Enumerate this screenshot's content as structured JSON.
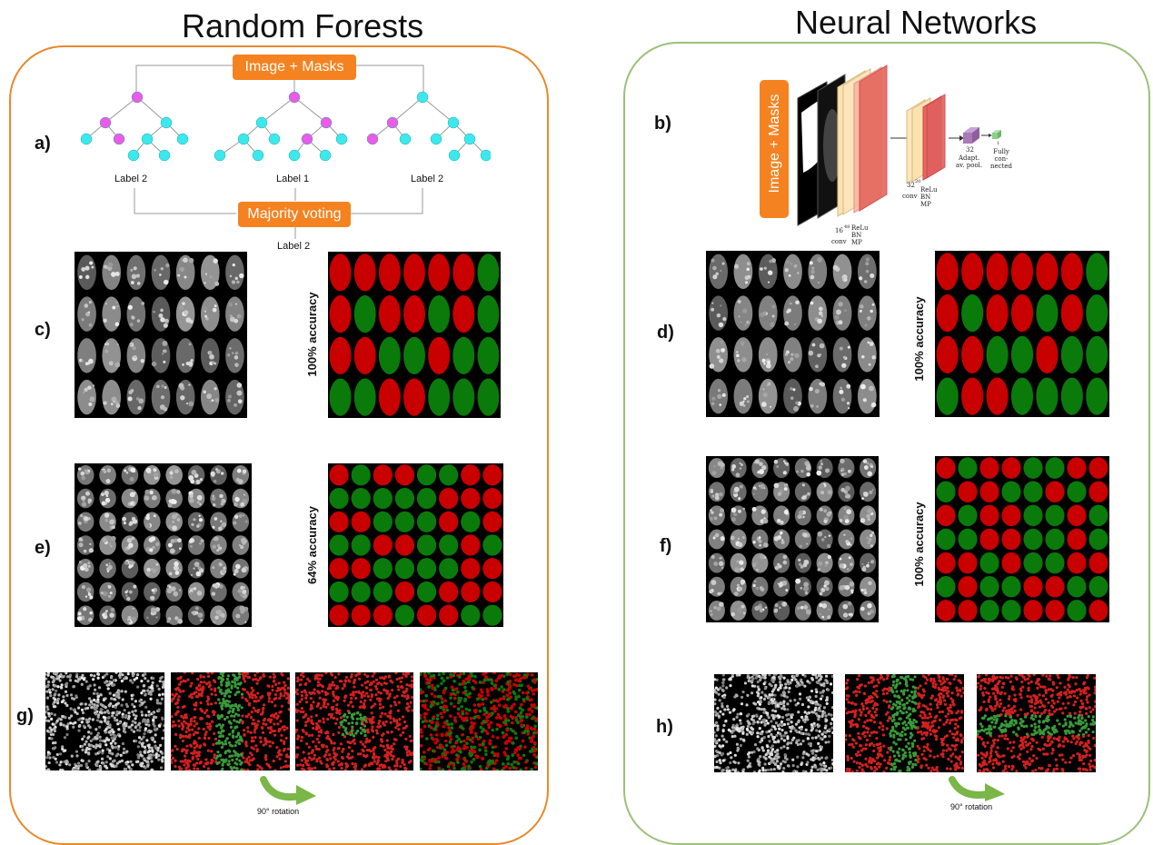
{
  "titles": {
    "rf": "Random Forests",
    "nn": "Neural Networks"
  },
  "labels": {
    "a": "a)",
    "b": "b)",
    "c": "c)",
    "d": "d)",
    "e": "e)",
    "f": "f)",
    "g": "g)",
    "h": "h)"
  },
  "rf_diagram": {
    "input_label": "Image + Masks",
    "vote_label": "Majority voting",
    "tree_outputs": [
      "Label 2",
      "Label 1",
      "Label 2"
    ],
    "final_output": "Label 2"
  },
  "nn_diagram": {
    "input_label": "Image + Masks",
    "layer1_size": "16",
    "layer1_dim": "48",
    "layer1_op": "conv",
    "layer1_post": [
      "ReLu",
      "BN",
      "MP"
    ],
    "layer2_size": "32",
    "layer2_dim": "20",
    "layer2_op": "conv",
    "layer2_post": [
      "ReLu",
      "BN",
      "MP"
    ],
    "pool_size": "32",
    "pool_label": [
      "Adapt.",
      "av. pool."
    ],
    "fc_size": "1",
    "fc_label": [
      "Fully",
      "con-",
      "nected"
    ]
  },
  "accuracy": {
    "c": "100% accuracy",
    "d": "100% accuracy",
    "e": "64% accuracy",
    "f": "100% accuracy"
  },
  "rotation": {
    "g": "90° rotation",
    "h": "90° rotation"
  },
  "colors": {
    "rf_border": "#e8892b",
    "nn_border": "#9cc07a",
    "pill": "#f58220",
    "node_cyan": "#3de8ec",
    "node_magenta": "#ea5ce8",
    "class_red": "#c80000",
    "class_green": "#0a7a0a",
    "arrow_green": "#7ab648"
  },
  "grids": {
    "c": {
      "rows": 4,
      "cols": 7,
      "classes": [
        "RRRRRRG",
        "RGRRGRG",
        "RRGGRGG",
        "GGRRGGG"
      ]
    },
    "d": {
      "rows": 4,
      "cols": 7,
      "classes": [
        "RRRRRRG",
        "RGRRGRG",
        "RRGGRGG",
        "GRRGGGG"
      ]
    },
    "e": {
      "rows": 7,
      "cols": 8,
      "classes": [
        "RGRRGGRR",
        "GGGGGRRR",
        "RRGGGRGR",
        "GGRRGGRG",
        "RRGGGGRR",
        "GGGRGRRR",
        "RRRGRRGG"
      ]
    },
    "f": {
      "rows": 7,
      "cols": 8,
      "classes": [
        "RGRRGGRR",
        "GRRGGRGR",
        "RGRRGGRG",
        "GGRRGGRG",
        "RRGRGGRR",
        "GRGGRRGG",
        "RRGGRRGR"
      ]
    }
  }
}
